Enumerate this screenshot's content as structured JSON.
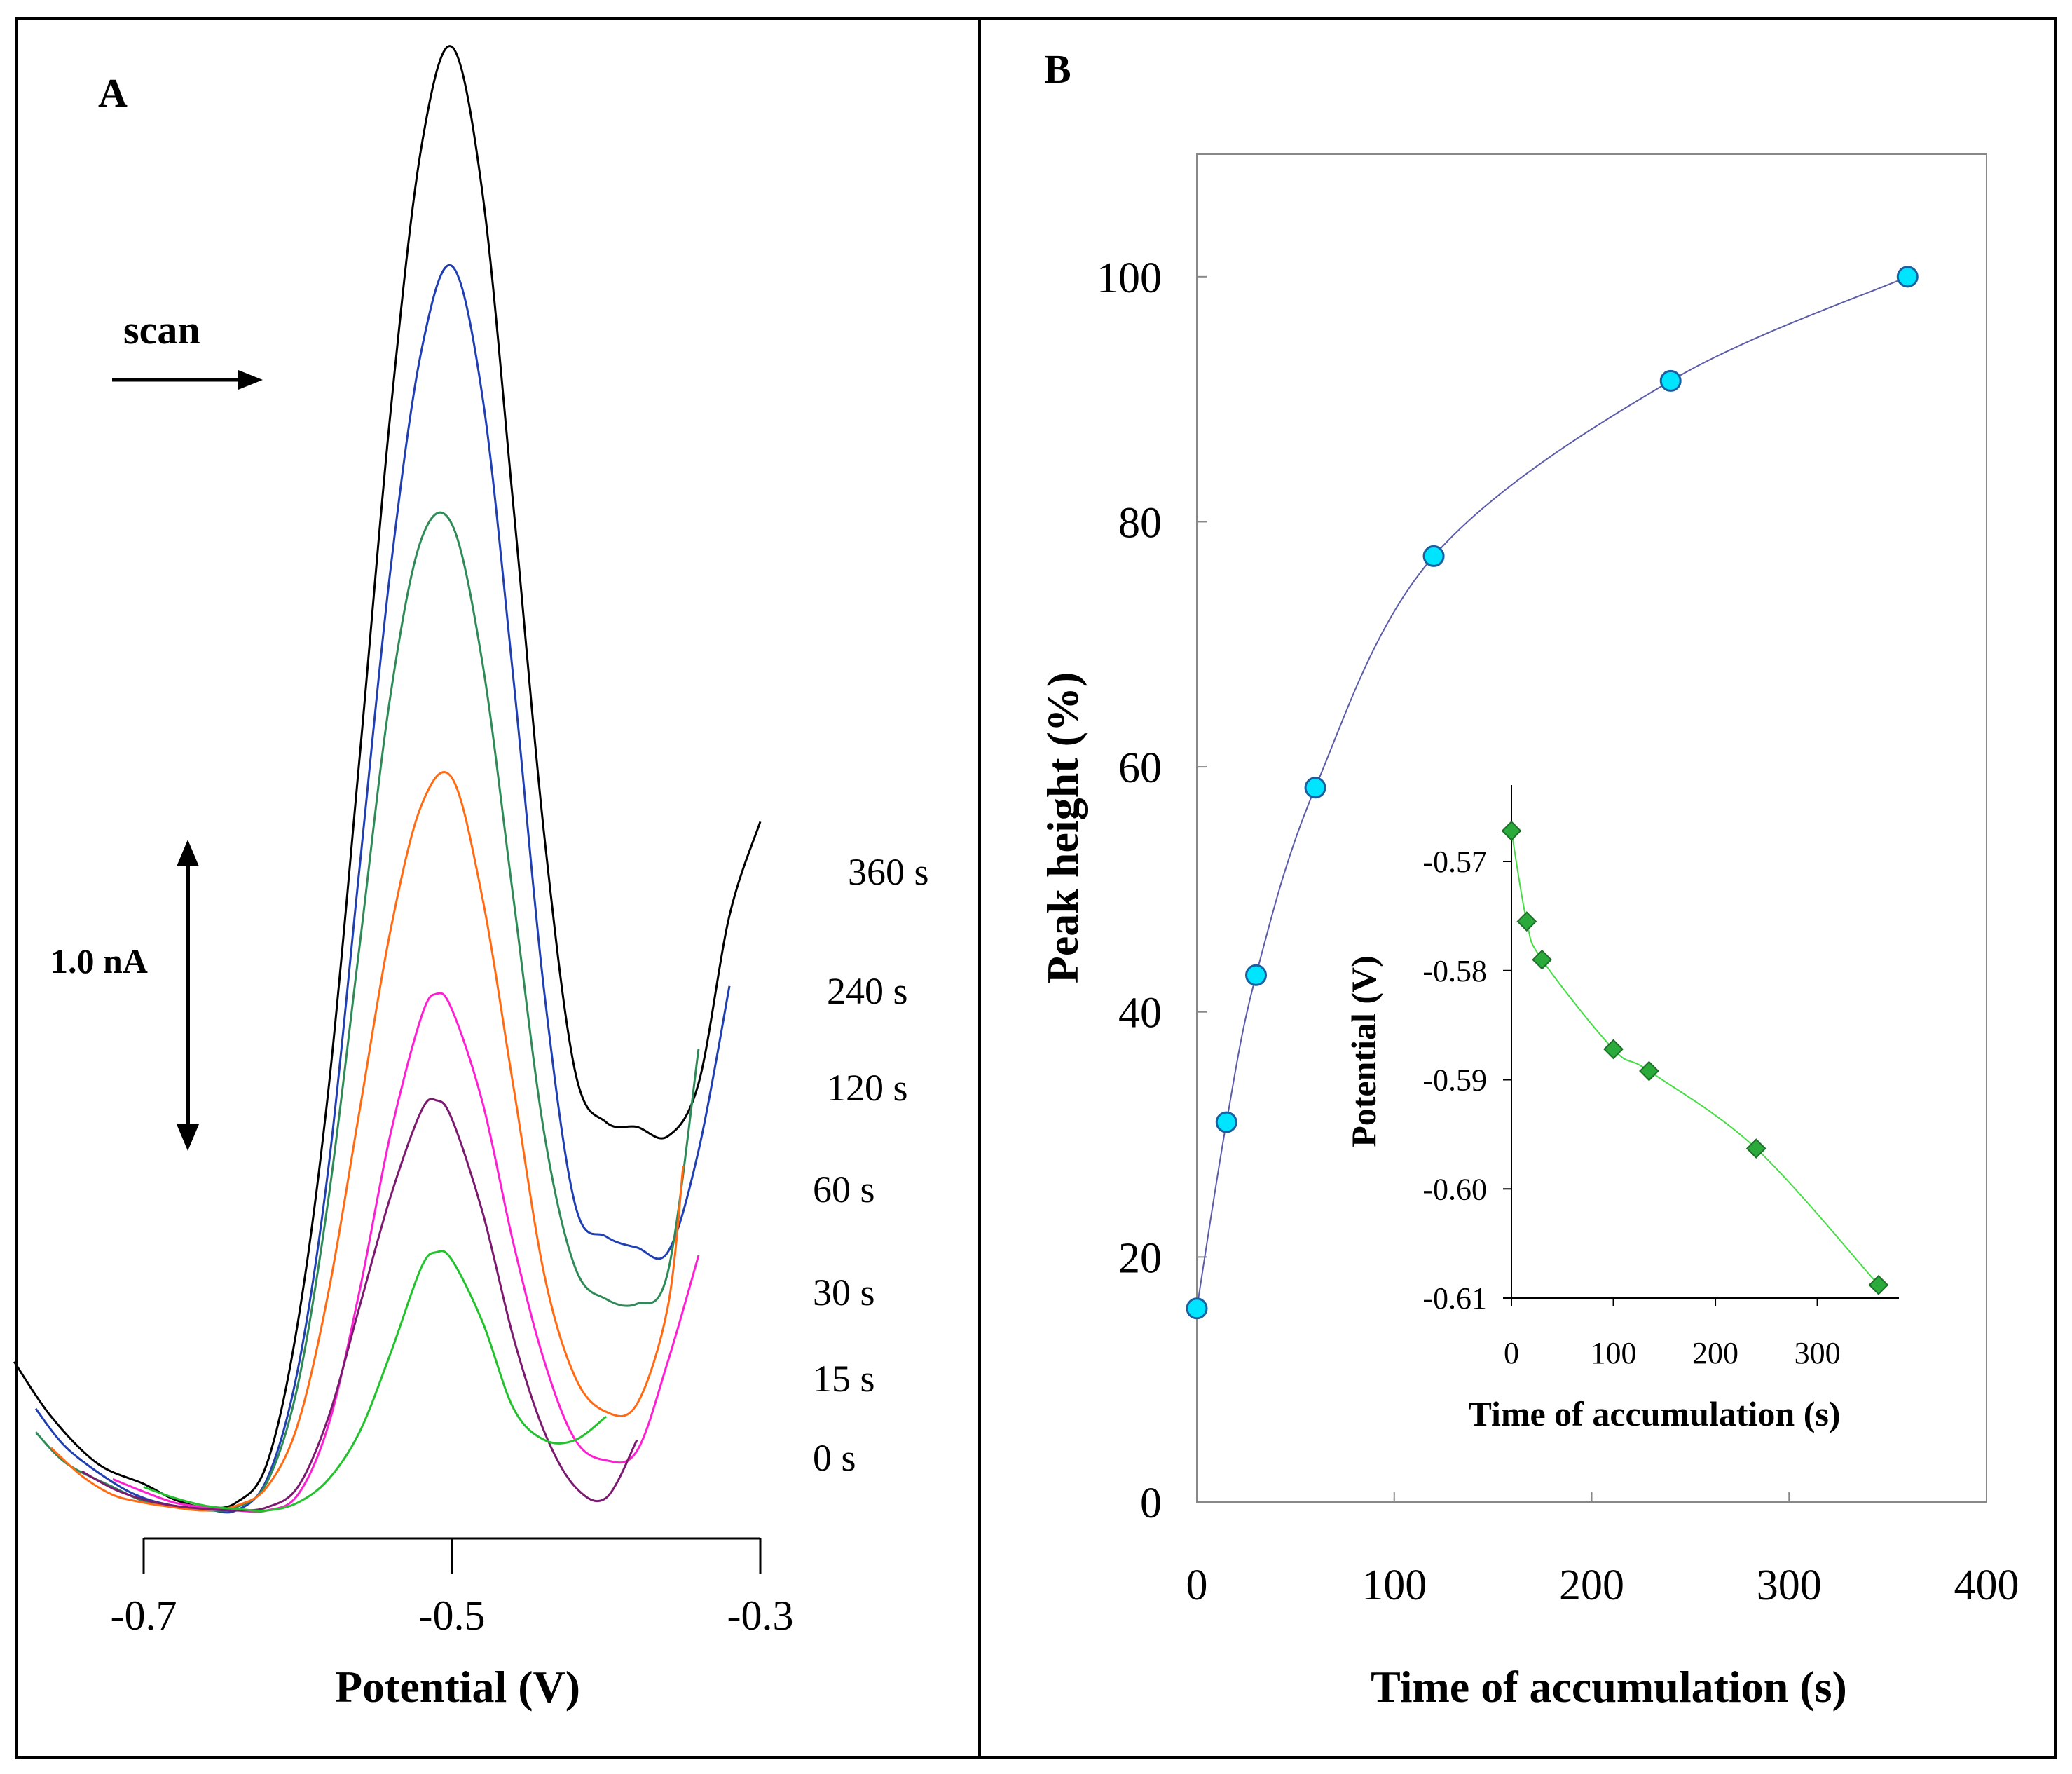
{
  "panels": {
    "a_letter": "A",
    "b_letter": "B"
  },
  "chart_data": [
    {
      "type": "line",
      "title": "",
      "xlabel": "Potential (V)",
      "ylabel": "",
      "xlim": [
        -0.78,
        -0.3
      ],
      "ylim": [
        0,
        9.3
      ],
      "x_ticks": [
        -0.7,
        -0.5,
        -0.3
      ],
      "x_tick_labels": [
        "-0.7",
        "-0.5",
        "-0.3"
      ],
      "scan_label": "scan",
      "scale_bar_label": "1.0 nA",
      "grid": false,
      "series": [
        {
          "name": "360 s",
          "label": "360 s",
          "color": "#000000",
          "x": [
            -0.784,
            -0.76,
            -0.73,
            -0.7,
            -0.68,
            -0.66,
            -0.64,
            -0.62,
            -0.6,
            -0.58,
            -0.56,
            -0.54,
            -0.52,
            -0.5,
            -0.48,
            -0.46,
            -0.44,
            -0.42,
            -0.4,
            -0.38,
            -0.36,
            -0.34,
            -0.32,
            -0.3
          ],
          "y": [
            0.95,
            0.6,
            0.3,
            0.17,
            0.07,
            0.02,
            0.05,
            0.3,
            1.2,
            2.7,
            4.8,
            7.0,
            8.7,
            9.35,
            8.4,
            6.4,
            4.3,
            2.8,
            2.48,
            2.45,
            2.39,
            2.73,
            3.8,
            4.4
          ]
        },
        {
          "name": "240 s",
          "label": "240 s",
          "color": "#1f3fb3",
          "x": [
            -0.77,
            -0.75,
            -0.72,
            -0.7,
            -0.68,
            -0.66,
            -0.64,
            -0.62,
            -0.6,
            -0.58,
            -0.56,
            -0.54,
            -0.52,
            -0.5,
            -0.48,
            -0.46,
            -0.44,
            -0.42,
            -0.4,
            -0.38,
            -0.36,
            -0.34,
            -0.32
          ],
          "y": [
            0.65,
            0.4,
            0.18,
            0.08,
            0.03,
            0.01,
            0.0,
            0.2,
            0.9,
            2.2,
            4.1,
            6.0,
            7.4,
            7.95,
            7.1,
            5.3,
            3.3,
            1.95,
            1.75,
            1.68,
            1.65,
            2.3,
            3.35
          ]
        },
        {
          "name": "120 s",
          "label": "120 s",
          "color": "#2e8b57",
          "x": [
            -0.77,
            -0.75,
            -0.72,
            -0.7,
            -0.68,
            -0.66,
            -0.64,
            -0.62,
            -0.6,
            -0.58,
            -0.56,
            -0.54,
            -0.52,
            -0.5,
            -0.48,
            -0.46,
            -0.44,
            -0.42,
            -0.4,
            -0.38,
            -0.36,
            -0.34
          ],
          "y": [
            0.5,
            0.3,
            0.15,
            0.06,
            0.02,
            0.0,
            0.02,
            0.18,
            0.8,
            2.0,
            3.6,
            5.2,
            6.2,
            6.3,
            5.4,
            3.9,
            2.4,
            1.55,
            1.35,
            1.32,
            1.52,
            2.95
          ]
        },
        {
          "name": "60 s",
          "label": "60 s",
          "color": "#ff6a13",
          "x": [
            -0.76,
            -0.74,
            -0.72,
            -0.7,
            -0.68,
            -0.66,
            -0.64,
            -0.62,
            -0.6,
            -0.58,
            -0.56,
            -0.54,
            -0.52,
            -0.5,
            -0.48,
            -0.46,
            -0.44,
            -0.42,
            -0.4,
            -0.38,
            -0.36,
            -0.35
          ],
          "y": [
            0.4,
            0.22,
            0.1,
            0.05,
            0.02,
            0.0,
            0.03,
            0.15,
            0.55,
            1.4,
            2.55,
            3.7,
            4.5,
            4.68,
            3.9,
            2.7,
            1.5,
            0.85,
            0.63,
            0.68,
            1.3,
            2.2
          ]
        },
        {
          "name": "30 s",
          "label": "30 s",
          "color": "#ff1fd2",
          "x": [
            -0.72,
            -0.7,
            -0.68,
            -0.66,
            -0.64,
            -0.62,
            -0.6,
            -0.58,
            -0.56,
            -0.54,
            -0.52,
            -0.51,
            -0.5,
            -0.48,
            -0.46,
            -0.44,
            -0.42,
            -0.4,
            -0.38,
            -0.36,
            -0.34
          ],
          "y": [
            0.2,
            0.12,
            0.05,
            0.02,
            0.0,
            0.0,
            0.1,
            0.55,
            1.4,
            2.4,
            3.15,
            3.3,
            3.2,
            2.6,
            1.7,
            0.95,
            0.45,
            0.32,
            0.38,
            0.95,
            1.63
          ]
        },
        {
          "name": "15 s",
          "label": "15 s",
          "color": "#7b1a6e",
          "x": [
            -0.74,
            -0.72,
            -0.7,
            -0.68,
            -0.66,
            -0.64,
            -0.62,
            -0.6,
            -0.58,
            -0.56,
            -0.54,
            -0.52,
            -0.51,
            -0.5,
            -0.48,
            -0.46,
            -0.44,
            -0.42,
            -0.4,
            -0.38
          ],
          "y": [
            0.25,
            0.14,
            0.07,
            0.03,
            0.01,
            0.0,
            0.02,
            0.15,
            0.6,
            1.3,
            2.0,
            2.55,
            2.62,
            2.5,
            1.9,
            1.1,
            0.5,
            0.15,
            0.08,
            0.45
          ]
        },
        {
          "name": "0 s",
          "label": "0 s",
          "color": "#22c22c",
          "x": [
            -0.7,
            -0.68,
            -0.66,
            -0.64,
            -0.62,
            -0.6,
            -0.58,
            -0.56,
            -0.54,
            -0.52,
            -0.51,
            -0.5,
            -0.48,
            -0.46,
            -0.44,
            -0.42,
            -0.4
          ],
          "y": [
            0.15,
            0.08,
            0.03,
            0.01,
            0.0,
            0.05,
            0.2,
            0.5,
            1.0,
            1.55,
            1.65,
            1.6,
            1.2,
            0.65,
            0.45,
            0.45,
            0.6
          ]
        }
      ]
    },
    {
      "type": "line",
      "title": "",
      "xlabel": "Time of accumulation (s)",
      "ylabel": "Peak height (%)",
      "xlim": [
        0,
        400
      ],
      "ylim": [
        0,
        110
      ],
      "x_ticks": [
        0,
        100,
        200,
        300,
        400
      ],
      "y_ticks": [
        0,
        20,
        40,
        60,
        80,
        100
      ],
      "grid": false,
      "series": [
        {
          "name": "Peak height",
          "color": "#5c5caa",
          "marker_color": "#00e5ff",
          "x": [
            0,
            15,
            30,
            60,
            120,
            240,
            360
          ],
          "y": [
            15.8,
            31.0,
            43.0,
            58.3,
            77.2,
            91.5,
            100.0
          ]
        }
      ]
    },
    {
      "type": "line",
      "title": "",
      "xlabel": "Time of accumulation (s)",
      "ylabel": "Potential (V)",
      "xlim": [
        0,
        380
      ],
      "ylim": [
        -0.61,
        -0.563
      ],
      "x_ticks": [
        0,
        100,
        200,
        300
      ],
      "y_ticks": [
        -0.61,
        -0.6,
        -0.59,
        -0.58,
        -0.57
      ],
      "y_tick_labels": [
        "-0.61",
        "-0.60",
        "-0.59",
        "-0.58",
        "-0.57"
      ],
      "grid": false,
      "series": [
        {
          "name": "Peak potential",
          "color": "#44dd44",
          "marker_color": "#2aaa3a",
          "x": [
            0,
            15,
            30,
            100,
            135,
            240,
            360
          ],
          "y": [
            -0.5672,
            -0.5755,
            -0.579,
            -0.5872,
            -0.5892,
            -0.5963,
            -0.6088
          ]
        }
      ]
    }
  ]
}
